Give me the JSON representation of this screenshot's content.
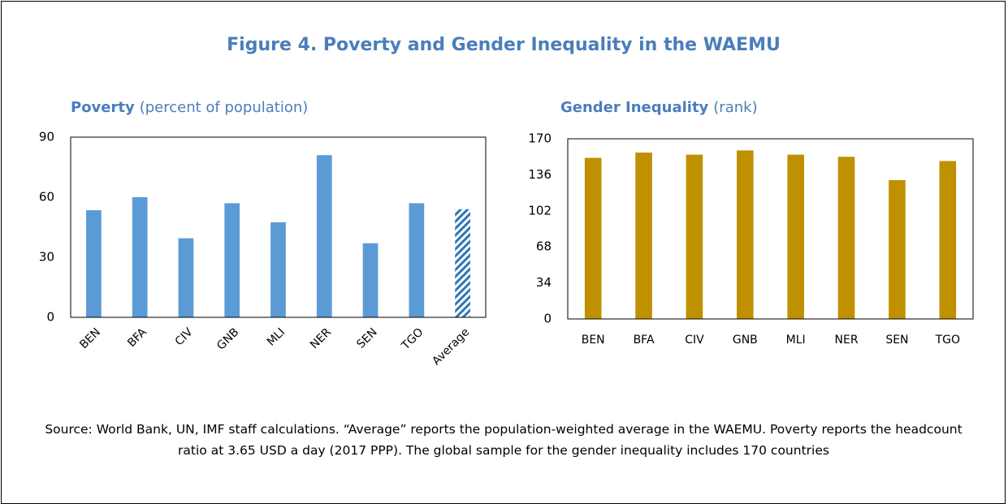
{
  "header": {
    "title": "Figure 4. Poverty and Gender Inequality in the WAEMU"
  },
  "chart_data": [
    {
      "type": "bar",
      "title": "Poverty",
      "subtitle": "(percent of population)",
      "categories": [
        "BEN",
        "BFA",
        "CIV",
        "GNB",
        "MLI",
        "NER",
        "SEN",
        "TGO",
        "Average"
      ],
      "values": [
        53.5,
        60,
        39.5,
        57,
        47.5,
        81,
        37,
        57,
        54
      ],
      "hatched": [
        false,
        false,
        false,
        false,
        false,
        false,
        false,
        false,
        true
      ],
      "color": "#5b9bd5",
      "ylim": [
        0,
        90
      ],
      "yticks": [
        0,
        30,
        60,
        90
      ],
      "grid": false,
      "rotate_labels": true
    },
    {
      "type": "bar",
      "title": "Gender Inequality",
      "subtitle": "(rank)",
      "categories": [
        "BEN",
        "BFA",
        "CIV",
        "GNB",
        "MLI",
        "NER",
        "SEN",
        "TGO"
      ],
      "values": [
        152,
        157,
        155,
        159,
        155,
        153,
        131,
        149
      ],
      "color": "#bf9000",
      "ylim": [
        0,
        170
      ],
      "yticks": [
        0,
        34,
        68,
        102,
        136,
        170
      ],
      "grid": false,
      "rotate_labels": false
    }
  ],
  "footer": {
    "source": "Source: World Bank, UN, IMF staff calculations. “Average” reports the population-weighted average in the WAEMU. Poverty reports the headcount ratio at 3.65 USD a day (2017 PPP). The global sample for the gender inequality includes 170 countries"
  }
}
